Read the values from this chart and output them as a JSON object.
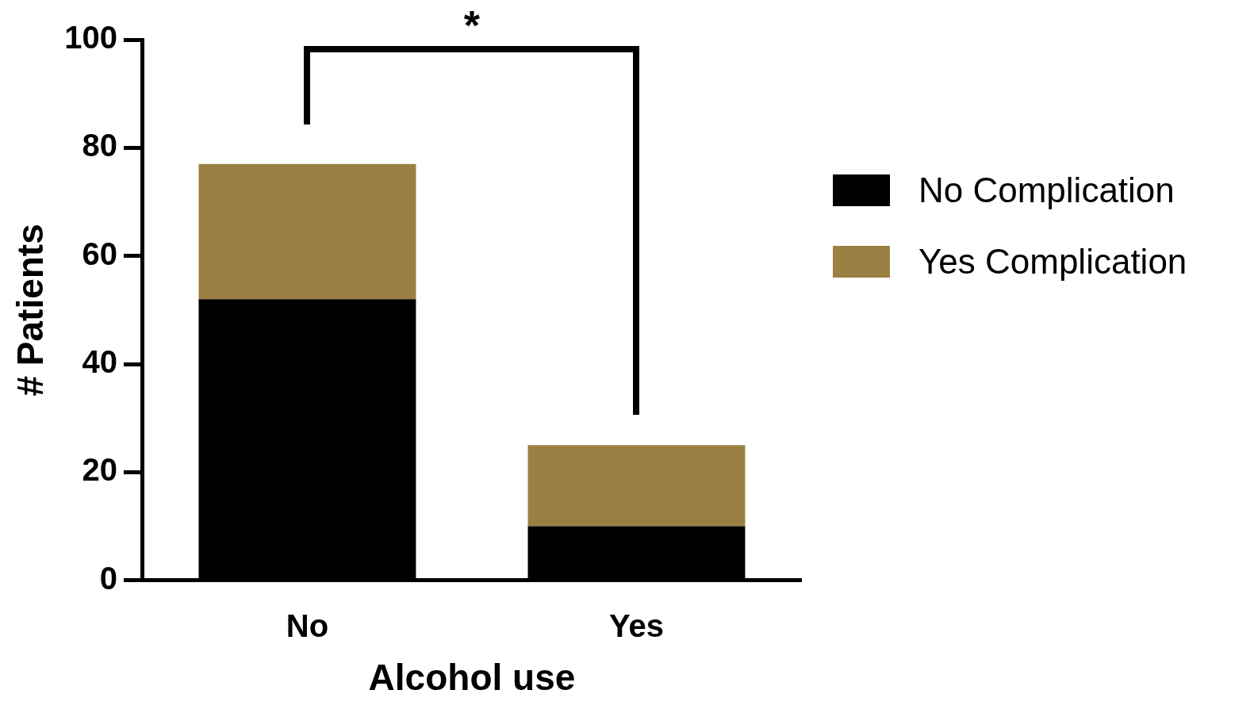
{
  "chart_data": {
    "type": "bar",
    "stacked": true,
    "xlabel": "Alcohol use",
    "ylabel": "# Patients",
    "categories": [
      "No",
      "Yes"
    ],
    "series": [
      {
        "name": "No Complication",
        "color": "#000000",
        "values": [
          52,
          10
        ]
      },
      {
        "name": "Yes Complication",
        "color": "#9b8043",
        "values": [
          25,
          15
        ]
      }
    ],
    "ylim": [
      0,
      100
    ],
    "yticks": [
      0,
      20,
      40,
      60,
      80,
      100
    ],
    "grid": false,
    "legend": "right",
    "annotations": [
      "*"
    ]
  }
}
